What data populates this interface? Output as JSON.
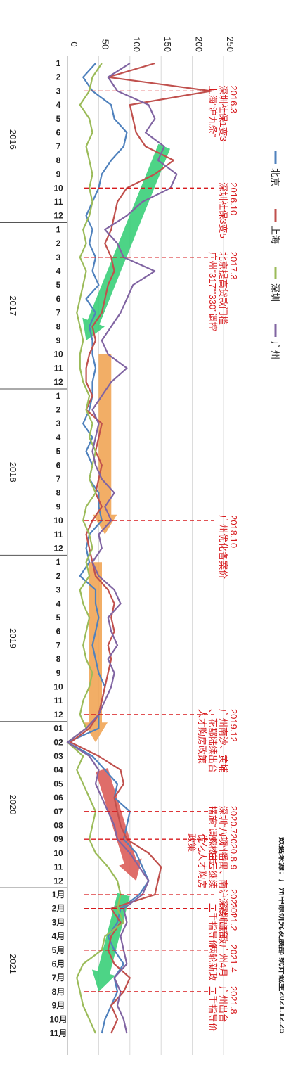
{
  "chart_data": {
    "type": "line",
    "orientation": "rotated-90",
    "xlim": [
      0,
      250
    ],
    "x_ticks": [
      "0",
      "50",
      "100",
      "150",
      "200",
      "250"
    ],
    "grid": true,
    "legend_placement": "top-right",
    "source_text": "数据来源：广州中原研究发展部  统计截至2021.12.25",
    "years": [
      {
        "label": "2016",
        "start": 0,
        "end": 11
      },
      {
        "label": "2017",
        "start": 12,
        "end": 23
      },
      {
        "label": "2018",
        "start": 24,
        "end": 35
      },
      {
        "label": "2019",
        "start": 36,
        "end": 47
      },
      {
        "label": "2020",
        "start": 48,
        "end": 59
      },
      {
        "label": "2021",
        "start": 60,
        "end": 70
      }
    ],
    "categories": [
      "1",
      "2",
      "3",
      "4",
      "5",
      "6",
      "7",
      "8",
      "9",
      "10",
      "11",
      "12",
      "1",
      "2",
      "3",
      "4",
      "5",
      "6",
      "7",
      "8",
      "9",
      "10",
      "11",
      "12",
      "1",
      "2",
      "3",
      "4",
      "5",
      "6",
      "7",
      "8",
      "9",
      "10",
      "11",
      "12",
      "1",
      "2",
      "3",
      "4",
      "5",
      "6",
      "7",
      "8",
      "9",
      "10",
      "11",
      "12",
      "01",
      "02",
      "03",
      "04",
      "05",
      "06",
      "07",
      "08",
      "09",
      "10",
      "11",
      "12",
      "1月",
      "2月",
      "3月",
      "4月",
      "5月",
      "6月",
      "7月",
      "8月",
      "9月",
      "10月",
      "11月"
    ],
    "series": [
      {
        "name": "北京",
        "color": "#4f81bd",
        "values": [
          45,
          25,
          40,
          70,
          75,
          95,
          90,
          70,
          55,
          50,
          40,
          30,
          40,
          35,
          45,
          40,
          50,
          30,
          45,
          35,
          40,
          40,
          45,
          40,
          40,
          35,
          25,
          40,
          30,
          40,
          35,
          50,
          50,
          55,
          35,
          30,
          35,
          20,
          45,
          45,
          50,
          45,
          40,
          45,
          50,
          60,
          55,
          50,
          50,
          0,
          40,
          60,
          80,
          75,
          100,
          95,
          90,
          110,
          120,
          130,
          115,
          85,
          80,
          65,
          75,
          90,
          75,
          80,
          70,
          60,
          55
        ]
      },
      {
        "name": "上海",
        "color": "#c0504d",
        "values": [
          140,
          65,
          230,
          100,
          105,
          110,
          125,
          170,
          140,
          95,
          80,
          75,
          70,
          60,
          70,
          75,
          65,
          60,
          55,
          40,
          45,
          35,
          30,
          30,
          40,
          30,
          55,
          50,
          45,
          55,
          50,
          45,
          55,
          40,
          30,
          35,
          40,
          45,
          65,
          75,
          70,
          75,
          65,
          70,
          65,
          60,
          55,
          50,
          35,
          5,
          50,
          85,
          90,
          75,
          80,
          85,
          95,
          130,
          150,
          145,
          140,
          70,
          85,
          70,
          65,
          75,
          100,
          90,
          70,
          80,
          70
        ]
      },
      {
        "name": "深圳",
        "color": "#9bbb59",
        "values": [
          55,
          40,
          35,
          20,
          35,
          40,
          30,
          35,
          40,
          35,
          40,
          35,
          25,
          30,
          20,
          30,
          25,
          20,
          15,
          20,
          25,
          20,
          20,
          25,
          35,
          30,
          40,
          35,
          45,
          40,
          35,
          45,
          30,
          25,
          35,
          40,
          30,
          35,
          20,
          25,
          35,
          30,
          25,
          30,
          40,
          35,
          25,
          20,
          30,
          0,
          25,
          15,
          25,
          35,
          45,
          40,
          35,
          45,
          65,
          80,
          85,
          80,
          90,
          60,
          55,
          25,
          15,
          20,
          25,
          35,
          45
        ]
      },
      {
        "name": "广州",
        "color": "#8064a2",
        "values": [
          100,
          65,
          80,
          130,
          140,
          125,
          155,
          145,
          175,
          165,
          120,
          95,
          60,
          80,
          90,
          140,
          105,
          95,
          85,
          70,
          55,
          65,
          95,
          70,
          55,
          40,
          50,
          45,
          40,
          45,
          55,
          75,
          60,
          70,
          50,
          55,
          40,
          50,
          75,
          85,
          65,
          70,
          80,
          65,
          75,
          70,
          60,
          50,
          30,
          0,
          35,
          50,
          45,
          55,
          65,
          75,
          80,
          100,
          115,
          130,
          120,
          90,
          95,
          85,
          90,
          95,
          75,
          85,
          80,
          90,
          95
        ]
      }
    ],
    "annotations": [
      {
        "index": 2,
        "lines": [
          "2016.3",
          "深圳社保1变3",
          "上海“沪九条”"
        ]
      },
      {
        "index": 9,
        "lines": [
          "2016.10",
          "深圳社保3变5"
        ]
      },
      {
        "index": 14,
        "lines": [
          "2017.3",
          "北京提高贷款门槛",
          "广州“317”“330”调控"
        ]
      },
      {
        "index": 33,
        "lines": [
          "2018.10",
          "广州优化备案价"
        ]
      },
      {
        "index": 47,
        "lines": [
          "2019.12",
          "广州南沙、黄埔",
          "、花都陆续出台",
          "人才购房政策"
        ]
      },
      {
        "index": 54,
        "lines": [
          "2020.7",
          "深圳“八项",
          "措施”调控楼市"
        ]
      },
      {
        "index": 56,
        "lines": [
          "2020.8-9",
          "广州番禺、南",
          "沙、白云继续",
          "优化人才购房",
          "政策"
        ]
      },
      {
        "index": 60,
        "lines": [
          "2021.1",
          "沪深楼市新政"
        ]
      },
      {
        "index": 61,
        "lines": [
          "2021.2",
          "深圳出台",
          "二手指导价"
        ]
      },
      {
        "index": 64,
        "lines": [
          "2021.4",
          "广州4月",
          "两轮新政"
        ]
      },
      {
        "index": 67,
        "lines": [
          "2021.8",
          "广州出台",
          "二手指导价"
        ]
      }
    ],
    "trend_arrows": [
      {
        "color": "#2ecc71",
        "from_index": 6,
        "to_index": 20,
        "from_x": 155,
        "to_x": 30
      },
      {
        "color": "#f0a04b",
        "from_index": 21,
        "to_index": 34,
        "from_x": 60,
        "to_x": 60
      },
      {
        "color": "#f0a04b",
        "from_index": 36,
        "to_index": 49,
        "from_x": 45,
        "to_x": 45
      },
      {
        "color": "#d9534f",
        "from_index": 51,
        "to_index": 59,
        "from_x": 55,
        "to_x": 110
      },
      {
        "color": "#2ecc71",
        "from_index": 60,
        "to_index": 67,
        "from_x": 90,
        "to_x": 50
      }
    ]
  }
}
